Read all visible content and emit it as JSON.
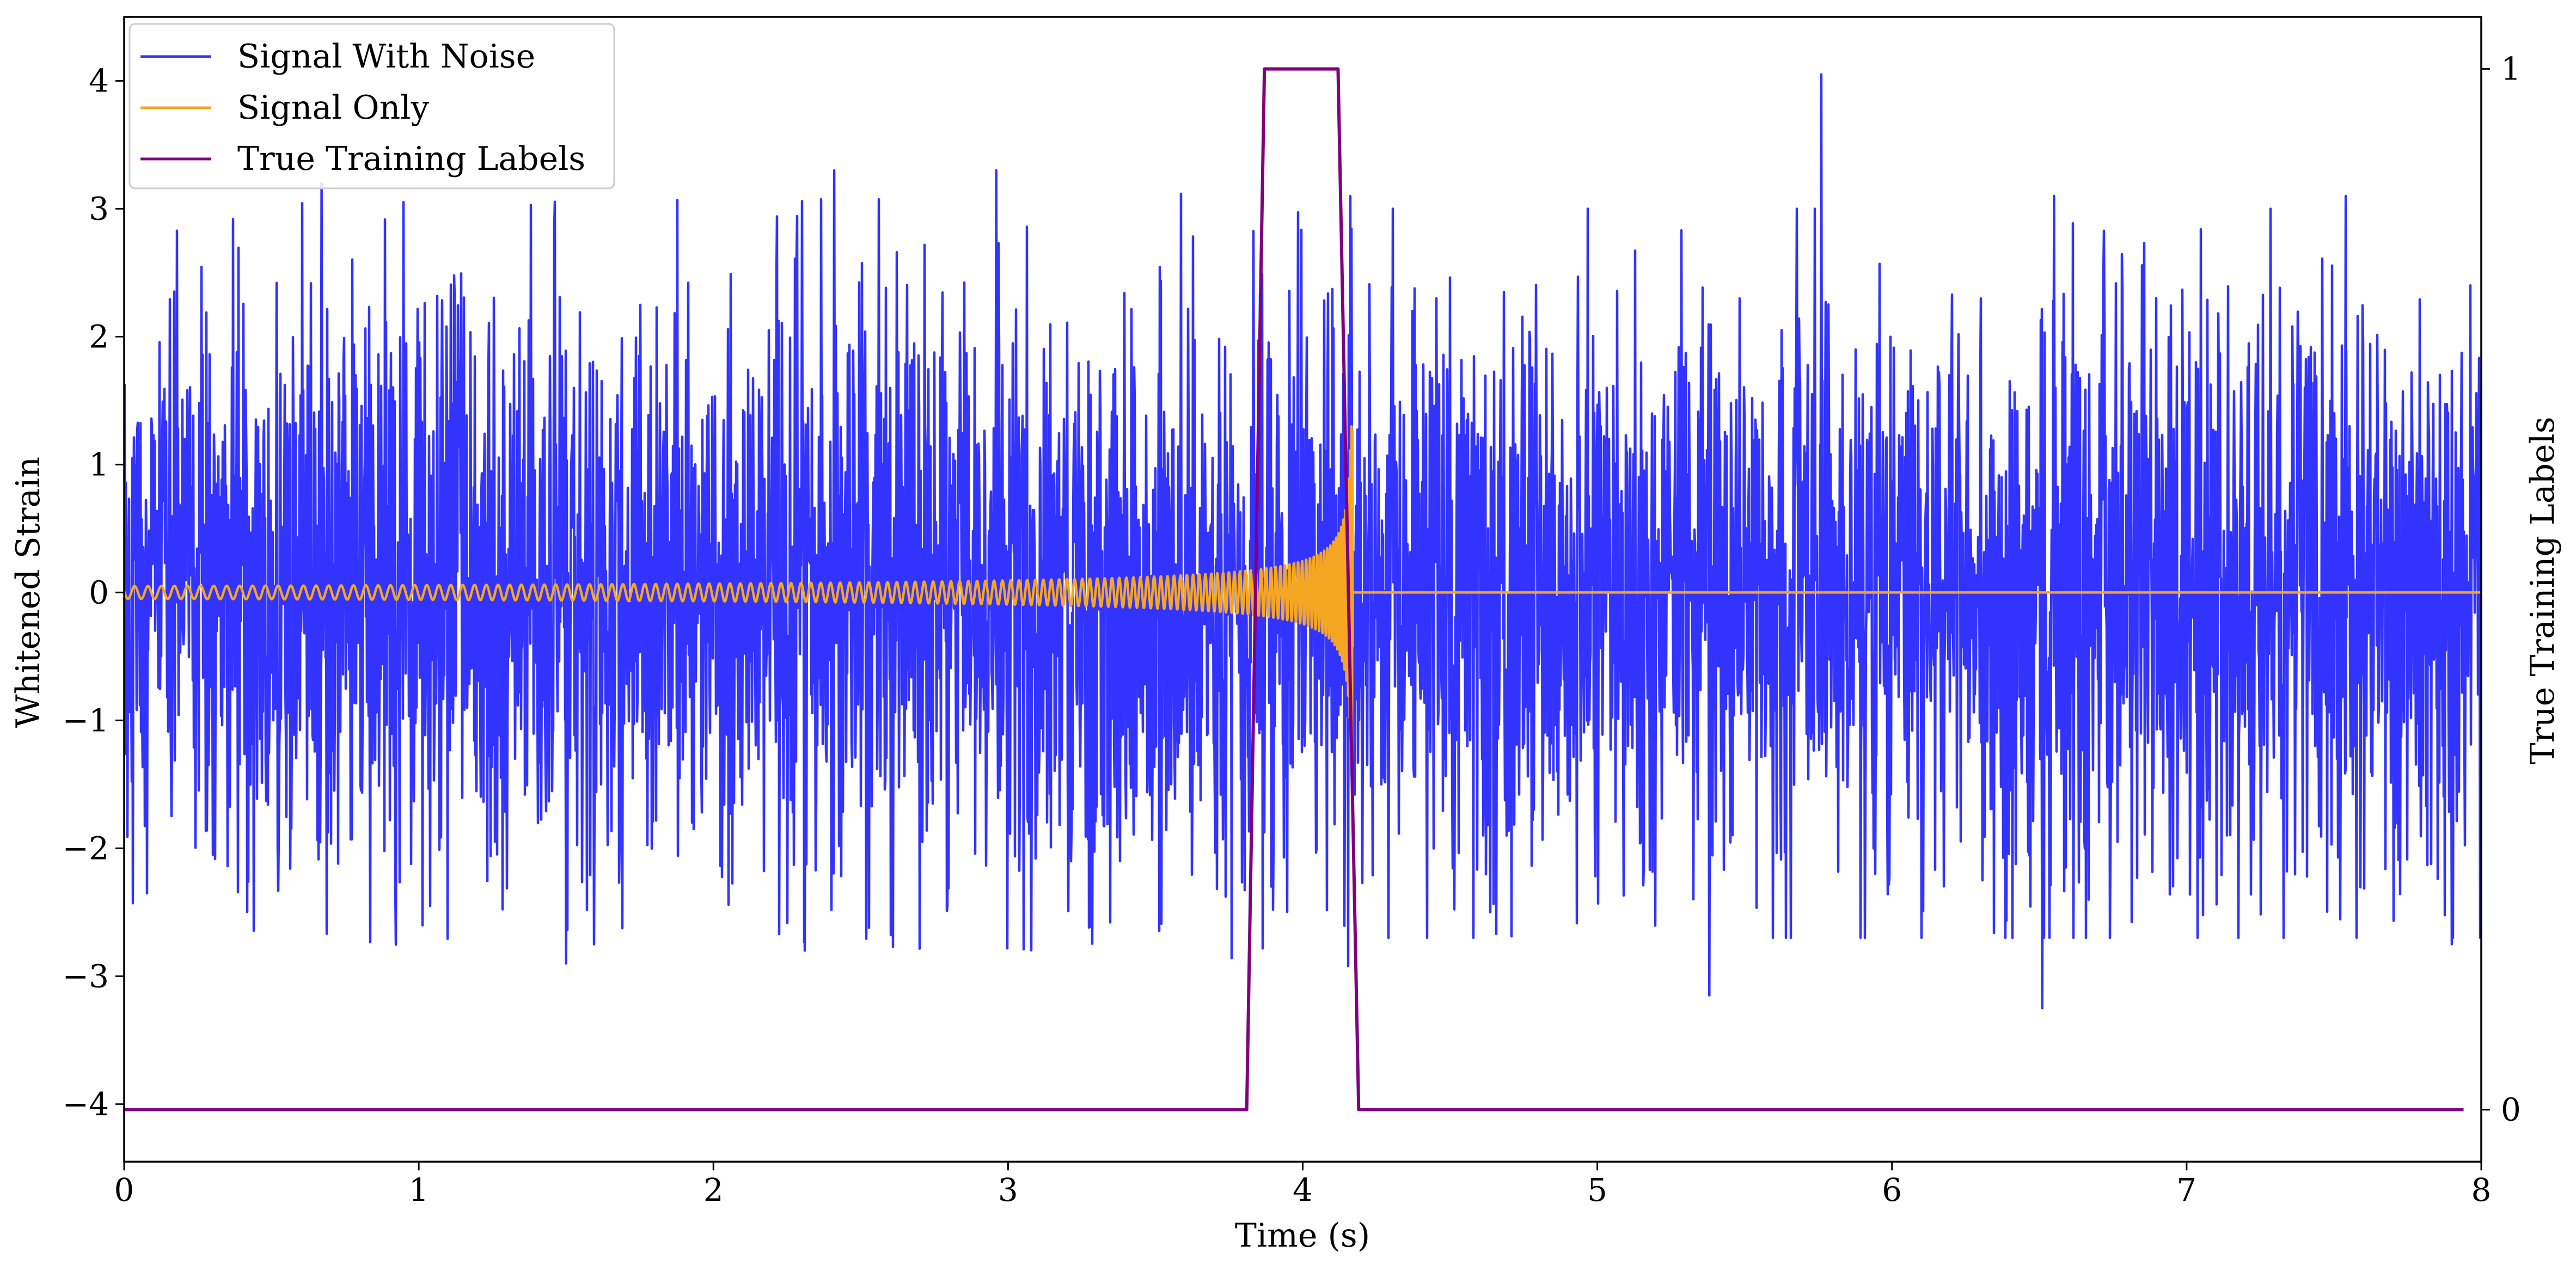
{
  "chart_data": {
    "type": "line",
    "title": "",
    "xlabel": "Time (s)",
    "ylabel": "Whitened Strain",
    "y2label": "True Training Labels",
    "xlim": [
      0,
      8
    ],
    "ylim": [
      -4.45,
      4.5
    ],
    "y2lim": [
      -0.05,
      1.05
    ],
    "xticks": [
      0,
      1,
      2,
      3,
      4,
      5,
      6,
      7,
      8
    ],
    "xtick_labels": [
      "0",
      "1",
      "2",
      "3",
      "4",
      "5",
      "6",
      "7",
      "8"
    ],
    "yticks": [
      -4,
      -3,
      -2,
      -1,
      0,
      1,
      2,
      3,
      4
    ],
    "ytick_labels": [
      "−4",
      "−3",
      "−2",
      "−1",
      "0",
      "1",
      "2",
      "3",
      "4"
    ],
    "y2ticks": [
      0,
      1
    ],
    "y2tick_labels": [
      "0",
      "1"
    ],
    "grid": false,
    "legend_position": "top-left",
    "legend": [
      {
        "label": "Signal With Noise",
        "color": "#3333ff"
      },
      {
        "label": "Signal Only",
        "color": "#f5a623"
      },
      {
        "label": "True Training Labels",
        "color": "#800080"
      }
    ],
    "series": [
      {
        "name": "Signal With Noise",
        "axis": "left",
        "color": "#3333ff",
        "description_values": {
          "x_range": [
            0,
            8
          ],
          "typical_amplitude": 1.2,
          "max": 4.05,
          "max_at": 5.76,
          "min": -3.25,
          "min_at": 6.51,
          "notable_peaks": [
            {
              "x": 0.67,
              "y": 3.2
            },
            {
              "x": 2.41,
              "y": 3.3
            },
            {
              "x": 2.96,
              "y": 3.3
            },
            {
              "x": 5.76,
              "y": 4.05
            },
            {
              "x": 6.55,
              "y": 3.1
            },
            {
              "x": 7.54,
              "y": 3.1
            }
          ],
          "notable_troughs": [
            {
              "x": 1.5,
              "y": -2.9
            },
            {
              "x": 2.31,
              "y": -2.8
            },
            {
              "x": 5.38,
              "y": -3.15
            },
            {
              "x": 6.51,
              "y": -3.25
            },
            {
              "x": 7.9,
              "y": -2.75
            }
          ]
        }
      },
      {
        "name": "Signal Only",
        "axis": "left",
        "color": "#f5a623",
        "chirp": {
          "start_x": 0.0,
          "merger_x": 4.15,
          "ringdown_end_x": 4.17,
          "amplitude_at_start": 0.05,
          "amplitude_at_2s": 0.1,
          "amplitude_at_3s": 0.17,
          "amplitude_at_3_5s": 0.27,
          "amplitude_at_4s": 0.6,
          "peak_amplitude": 1.3,
          "frequency_at_start_hz": 22,
          "after_merger_value": 0.0
        }
      },
      {
        "name": "True Training Labels",
        "axis": "right",
        "color": "#800080",
        "points": [
          {
            "x": 0.0,
            "y": 0
          },
          {
            "x": 3.81,
            "y": 0
          },
          {
            "x": 3.87,
            "y": 1
          },
          {
            "x": 4.12,
            "y": 1
          },
          {
            "x": 4.19,
            "y": 0
          },
          {
            "x": 7.94,
            "y": 0
          }
        ]
      }
    ]
  }
}
